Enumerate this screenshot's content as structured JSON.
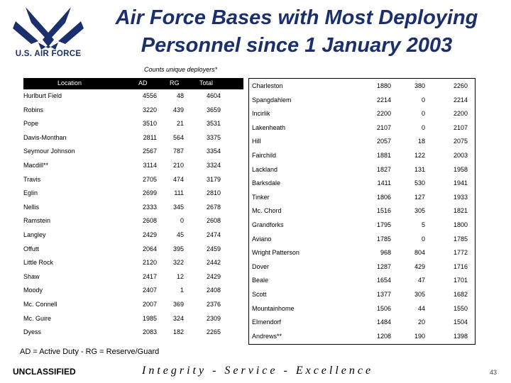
{
  "logo": {
    "text": "U.S. AIR FORCE",
    "color": "#1a2f6b"
  },
  "title": "Air Force Bases with Most Deploying Personnel since 1 January 2003",
  "subtitle": "Counts unique deployers*",
  "headers": {
    "location": "Location",
    "ad": "AD",
    "rg": "RG",
    "total": "Total"
  },
  "left_rows": [
    {
      "location": "Hurlburt Field",
      "ad": "4556",
      "rg": "48",
      "total": "4604"
    },
    {
      "location": "Robins",
      "ad": "3220",
      "rg": "439",
      "total": "3659"
    },
    {
      "location": "Pope",
      "ad": "3510",
      "rg": "21",
      "total": "3531"
    },
    {
      "location": "Davis-Monthan",
      "ad": "2811",
      "rg": "564",
      "total": "3375"
    },
    {
      "location": "Seymour Johnson",
      "ad": "2567",
      "rg": "787",
      "total": "3354"
    },
    {
      "location": "Macdill**",
      "ad": "3114",
      "rg": "210",
      "total": "3324"
    },
    {
      "location": "Travis",
      "ad": "2705",
      "rg": "474",
      "total": "3179"
    },
    {
      "location": "Eglin",
      "ad": "2699",
      "rg": "111",
      "total": "2810"
    },
    {
      "location": "Nellis",
      "ad": "2333",
      "rg": "345",
      "total": "2678"
    },
    {
      "location": "Ramstein",
      "ad": "2608",
      "rg": "0",
      "total": "2608"
    },
    {
      "location": "Langley",
      "ad": "2429",
      "rg": "45",
      "total": "2474"
    },
    {
      "location": "Offutt",
      "ad": "2064",
      "rg": "395",
      "total": "2459"
    },
    {
      "location": "Little Rock",
      "ad": "2120",
      "rg": "322",
      "total": "2442"
    },
    {
      "location": "Shaw",
      "ad": "2417",
      "rg": "12",
      "total": "2429"
    },
    {
      "location": "Moody",
      "ad": "2407",
      "rg": "1",
      "total": "2408"
    },
    {
      "location": "Mc. Connell",
      "ad": "2007",
      "rg": "369",
      "total": "2376"
    },
    {
      "location": "Mc. Guire",
      "ad": "1985",
      "rg": "324",
      "total": "2309"
    },
    {
      "location": "Dyess",
      "ad": "2083",
      "rg": "182",
      "total": "2265"
    }
  ],
  "right_rows": [
    {
      "location": "Charleston",
      "ad": "1880",
      "rg": "380",
      "total": "2260"
    },
    {
      "location": "Spangdahlem",
      "ad": "2214",
      "rg": "0",
      "total": "2214"
    },
    {
      "location": "Incirlik",
      "ad": "2200",
      "rg": "0",
      "total": "2200"
    },
    {
      "location": "Lakenheath",
      "ad": "2107",
      "rg": "0",
      "total": "2107"
    },
    {
      "location": "Hill",
      "ad": "2057",
      "rg": "18",
      "total": "2075"
    },
    {
      "location": "Fairchild",
      "ad": "1881",
      "rg": "122",
      "total": "2003"
    },
    {
      "location": "Lackland",
      "ad": "1827",
      "rg": "131",
      "total": "1958"
    },
    {
      "location": "Barksdale",
      "ad": "1411",
      "rg": "530",
      "total": "1941"
    },
    {
      "location": "Tinker",
      "ad": "1806",
      "rg": "127",
      "total": "1933"
    },
    {
      "location": "Mc. Chord",
      "ad": "1516",
      "rg": "305",
      "total": "1821"
    },
    {
      "location": "Grandforks",
      "ad": "1795",
      "rg": "5",
      "total": "1800"
    },
    {
      "location": "Aviano",
      "ad": "1785",
      "rg": "0",
      "total": "1785"
    },
    {
      "location": "Wright Patterson",
      "ad": "968",
      "rg": "804",
      "total": "1772"
    },
    {
      "location": "Dover",
      "ad": "1287",
      "rg": "429",
      "total": "1716"
    },
    {
      "location": "Beale",
      "ad": "1654",
      "rg": "47",
      "total": "1701"
    },
    {
      "location": "Scott",
      "ad": "1377",
      "rg": "305",
      "total": "1682"
    },
    {
      "location": "Mountainhome",
      "ad": "1506",
      "rg": "44",
      "total": "1550"
    },
    {
      "location": "Elmendorf",
      "ad": "1484",
      "rg": "20",
      "total": "1504"
    },
    {
      "location": "Andrews**",
      "ad": "1208",
      "rg": "190",
      "total": "1398"
    }
  ],
  "footnote": "AD = Active Duty - RG = Reserve/Guard",
  "classification": "UNCLASSIFIED",
  "motto": "Integrity - Service - Excellence",
  "page_number": "43"
}
